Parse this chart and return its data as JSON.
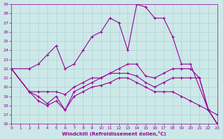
{
  "xlabel": "Windchill (Refroidissement éolien,°C)",
  "xlim": [
    0,
    23
  ],
  "ylim": [
    16,
    29
  ],
  "yticks": [
    16,
    17,
    18,
    19,
    20,
    21,
    22,
    23,
    24,
    25,
    26,
    27,
    28,
    29
  ],
  "xticks": [
    0,
    1,
    2,
    3,
    4,
    5,
    6,
    7,
    8,
    9,
    10,
    11,
    12,
    13,
    14,
    15,
    16,
    17,
    18,
    19,
    20,
    21,
    22,
    23
  ],
  "bg_color": "#cde8e8",
  "line_color": "#990099",
  "grid_color": "#aacccc",
  "line1_x": [
    0,
    2,
    3,
    4,
    5,
    6,
    7,
    8,
    9,
    10,
    11,
    12,
    13,
    14,
    15,
    16,
    17,
    18,
    19,
    20,
    22,
    23
  ],
  "line1_y": [
    22,
    22,
    22.5,
    23.5,
    24.5,
    22,
    22.5,
    24,
    25.5,
    26,
    27.5,
    27,
    24,
    29,
    28.7,
    27.5,
    27.5,
    25.5,
    22.5,
    22.5,
    17.5,
    17
  ],
  "line2_x": [
    0,
    2,
    3,
    4,
    5,
    6,
    7,
    8,
    9,
    10,
    11,
    12,
    13,
    14,
    15,
    16,
    17,
    18,
    19,
    20,
    21,
    22,
    23
  ],
  "line2_y": [
    22,
    19.5,
    19.5,
    19.5,
    19.5,
    19.2,
    20,
    20.5,
    21,
    21,
    21.5,
    22,
    22.5,
    22.5,
    21.2,
    21,
    21.5,
    22,
    22,
    22,
    21,
    17.5,
    16
  ],
  "line3_x": [
    0,
    2,
    3,
    4,
    5,
    6,
    7,
    8,
    9,
    10,
    11,
    12,
    13,
    14,
    15,
    16,
    17,
    18,
    19,
    20,
    21,
    22,
    23
  ],
  "line3_y": [
    22,
    19.5,
    19,
    18.2,
    19,
    17.5,
    19.5,
    20,
    20.5,
    21,
    21.5,
    21.5,
    21.5,
    21.2,
    20.5,
    20,
    20.5,
    21,
    21,
    21,
    21,
    17.5,
    16
  ],
  "line4_x": [
    0,
    2,
    3,
    4,
    5,
    6,
    7,
    8,
    9,
    10,
    11,
    12,
    13,
    14,
    15,
    16,
    17,
    18,
    19,
    20,
    21,
    22,
    23
  ],
  "line4_y": [
    22,
    19.5,
    18.5,
    18,
    18.5,
    17.5,
    19,
    19.5,
    20,
    20.2,
    20.5,
    21,
    21,
    20.5,
    20,
    19.5,
    19.5,
    19.5,
    19,
    18.5,
    18,
    17.5,
    16
  ]
}
